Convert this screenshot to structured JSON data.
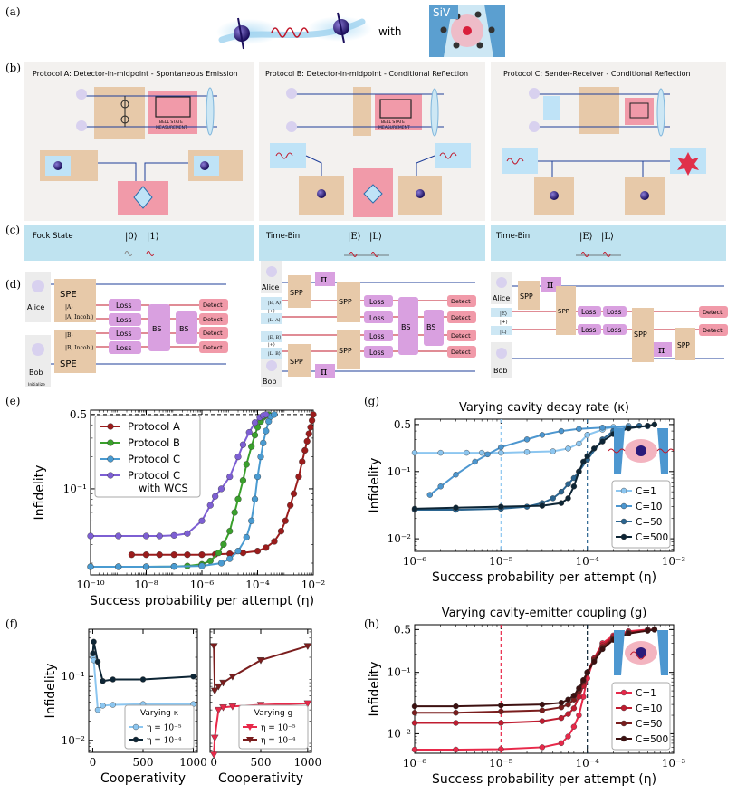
{
  "panel_labels": {
    "a": "(a)",
    "b": "(b)",
    "c": "(c)",
    "d": "(d)",
    "e": "(e)",
    "f": "(f)",
    "g": "(g)",
    "h": "(h)"
  },
  "panel_a": {
    "with_label": "with",
    "siv_label": "SiV"
  },
  "protocols": {
    "a_title": "Protocol A: Detector-in-midpoint - Spontaneous Emission",
    "b_title": "Protocol B: Detector-in-midpoint - Conditional Reflection",
    "c_title": "Protocol C: Sender-Receiver - Conditional Reflection",
    "bsm_line1": "BELL STATE",
    "bsm_line2": "MEASUREMENT"
  },
  "encodings": {
    "a": {
      "name": "Fock State",
      "s1": "|0⟩",
      "s2": "|1⟩"
    },
    "b": {
      "name": "Time-Bin",
      "s1": "|E⟩",
      "s2": "|L⟩"
    },
    "c": {
      "name": "Time-Bin",
      "s1": "|E⟩",
      "s2": "|L⟩"
    }
  },
  "circuits": {
    "alice": "Alice",
    "bob": "Bob",
    "initialize": "Initialize",
    "spe": "SPE",
    "spp": "SPP",
    "loss": "Loss",
    "bs": "BS",
    "detect": "Detect",
    "pi": "π",
    "a_states": [
      "|A⟩",
      "|A, Incoh.⟩",
      "|B⟩",
      "|B, Incoh.⟩"
    ],
    "b_states": [
      "|E, A⟩",
      "|+⟩",
      "|L, A⟩",
      "|E, B⟩",
      "|+⟩",
      "|L, B⟩"
    ],
    "c_states": [
      "|E⟩",
      "|+⟩",
      "|L⟩"
    ]
  },
  "colors": {
    "protoA": "#9b1c1c",
    "protoB": "#3aa02c",
    "protoC": "#4a9bd1",
    "wcs": "#7d5fd3",
    "c1": "#8cc6f0",
    "c10": "#4d97d0",
    "c50": "#2b6590",
    "c500": "#0d2535",
    "h1": "#e8294a",
    "h10": "#c01c30",
    "h50": "#7a1d1d",
    "h500": "#3d1010"
  },
  "chart_data": [
    {
      "id": "e",
      "type": "line",
      "xscale": "log",
      "yscale": "log",
      "xlabel": "Success probability per attempt (η)",
      "ylabel": "Infidelity",
      "xlim": [
        1e-10,
        0.01
      ],
      "ylim": [
        0.0155,
        0.55
      ],
      "xticks": [
        "10⁻¹⁰",
        "10⁻⁸",
        "10⁻⁶",
        "10⁻⁴",
        "10⁻²"
      ],
      "yticks": [
        "10⁻¹",
        "0.5"
      ],
      "reference_line": 0.5,
      "legend_position": "top-left",
      "series": [
        {
          "name": "Protocol A",
          "color": "protoA",
          "x": [
            3e-09,
            1e-08,
            3e-08,
            1e-07,
            3e-07,
            1e-06,
            3e-06,
            1e-05,
            3e-05,
            0.0001,
            0.0002,
            0.0004,
            0.0007,
            0.001,
            0.0015,
            0.002,
            0.003,
            0.004,
            0.005,
            0.006,
            0.007,
            0.008,
            0.009,
            0.01
          ],
          "y": [
            0.024,
            0.024,
            0.024,
            0.024,
            0.024,
            0.024,
            0.0242,
            0.0245,
            0.025,
            0.026,
            0.028,
            0.032,
            0.04,
            0.05,
            0.07,
            0.09,
            0.13,
            0.18,
            0.23,
            0.28,
            0.33,
            0.38,
            0.44,
            0.5
          ]
        },
        {
          "name": "Protocol B",
          "color": "protoB",
          "x": [
            1e-10,
            1e-09,
            1e-08,
            1e-07,
            3e-07,
            1e-06,
            2e-06,
            4e-06,
            6e-06,
            1e-05,
            1.5e-05,
            2e-05,
            3e-05,
            4e-05,
            6e-05,
            8e-05,
            0.0001,
            0.00013,
            0.00016,
            0.0002,
            0.00025
          ],
          "y": [
            0.0185,
            0.0185,
            0.0185,
            0.0186,
            0.0188,
            0.0195,
            0.021,
            0.025,
            0.03,
            0.04,
            0.06,
            0.08,
            0.12,
            0.17,
            0.25,
            0.32,
            0.38,
            0.43,
            0.47,
            0.49,
            0.5
          ]
        },
        {
          "name": "Protocol C",
          "color": "protoC",
          "x": [
            1e-10,
            1e-09,
            1e-08,
            1e-07,
            1e-06,
            5e-06,
            1e-05,
            2e-05,
            4e-05,
            6e-05,
            8e-05,
            0.0001,
            0.00013,
            0.00016,
            0.0002,
            0.00025,
            0.0003,
            0.0004
          ],
          "y": [
            0.0185,
            0.0185,
            0.0185,
            0.0186,
            0.0188,
            0.02,
            0.022,
            0.026,
            0.035,
            0.05,
            0.08,
            0.13,
            0.2,
            0.27,
            0.35,
            0.43,
            0.48,
            0.5
          ]
        },
        {
          "name": "Protocol C with WCS",
          "color": "wcs",
          "x": [
            1e-10,
            1e-09,
            1e-08,
            3e-08,
            1e-07,
            3e-07,
            1e-06,
            2e-06,
            3e-06,
            5e-06,
            1e-05,
            2e-05,
            3e-05,
            5e-05,
            8e-05,
            0.00012,
            0.00016,
            0.0002
          ],
          "y": [
            0.036,
            0.036,
            0.036,
            0.036,
            0.0365,
            0.038,
            0.05,
            0.07,
            0.085,
            0.1,
            0.13,
            0.2,
            0.26,
            0.34,
            0.42,
            0.47,
            0.49,
            0.5
          ]
        }
      ]
    },
    {
      "id": "g",
      "type": "line",
      "xscale": "log",
      "yscale": "log",
      "title": "Varying cavity decay rate (κ)",
      "xlabel": "Success probability per attempt (η)",
      "ylabel": "Infidelity",
      "xlim": [
        1e-06,
        0.001
      ],
      "ylim": [
        0.0065,
        0.6
      ],
      "xticks": [
        "10⁻⁶",
        "10⁻⁵",
        "10⁻⁴",
        "10⁻³"
      ],
      "yticks": [
        "10⁻²",
        "10⁻¹",
        "0.5"
      ],
      "vlines": [
        {
          "x": 1e-05,
          "color": "c1"
        },
        {
          "x": 0.0001,
          "color": "c50"
        }
      ],
      "legend_position": "bottom-right",
      "series": [
        {
          "name": "C=1",
          "color": "c1",
          "x": [
            1e-06,
            2e-06,
            4e-06,
            6e-06,
            1e-05,
            2e-05,
            4e-05,
            6e-05,
            8e-05,
            0.0001,
            0.00015,
            0.0002,
            0.0003
          ],
          "y": [
            0.19,
            0.19,
            0.19,
            0.19,
            0.19,
            0.195,
            0.2,
            0.22,
            0.26,
            0.35,
            0.42,
            0.46,
            0.48
          ]
        },
        {
          "name": "C=10",
          "color": "c10",
          "x": [
            1.5e-06,
            2e-06,
            3e-06,
            5e-06,
            7e-06,
            1e-05,
            2e-05,
            3e-05,
            5e-05,
            8e-05,
            0.00015,
            0.0003,
            0.0005
          ],
          "y": [
            0.045,
            0.06,
            0.09,
            0.14,
            0.18,
            0.23,
            0.3,
            0.35,
            0.4,
            0.43,
            0.45,
            0.46,
            0.47
          ]
        },
        {
          "name": "C=50",
          "color": "c50",
          "x": [
            1e-06,
            3e-06,
            1e-05,
            2e-05,
            3e-05,
            4e-05,
            5e-05,
            6e-05,
            7e-05,
            8e-05,
            0.0001,
            0.00015,
            0.0002,
            0.0004
          ],
          "y": [
            0.027,
            0.027,
            0.028,
            0.03,
            0.034,
            0.04,
            0.05,
            0.065,
            0.08,
            0.1,
            0.15,
            0.3,
            0.4,
            0.48
          ]
        },
        {
          "name": "C=500",
          "color": "c500",
          "x": [
            1e-06,
            3e-06,
            1e-05,
            3e-05,
            5e-05,
            6e-05,
            7e-05,
            8e-05,
            9e-05,
            0.0001,
            0.00012,
            0.00015,
            0.0002,
            0.0003,
            0.0005,
            0.0006
          ],
          "y": [
            0.028,
            0.029,
            0.03,
            0.031,
            0.034,
            0.04,
            0.06,
            0.1,
            0.14,
            0.17,
            0.22,
            0.28,
            0.36,
            0.44,
            0.48,
            0.5
          ]
        }
      ]
    },
    {
      "id": "f_left",
      "type": "line",
      "xscale": "linear",
      "yscale": "log",
      "xlabel": "Cooperativity",
      "ylabel": "Infidelity",
      "legend_title": "Varying κ",
      "xlim": [
        -40,
        1040
      ],
      "ylim": [
        0.0065,
        0.55
      ],
      "xticks": [
        "0",
        "500",
        "1000"
      ],
      "yticks": [
        "10⁻²",
        "10⁻¹"
      ],
      "series": [
        {
          "name": "η = 10⁻⁵",
          "color": "c1",
          "x": [
            1,
            10,
            50,
            100,
            200,
            500,
            1000
          ],
          "y": [
            0.2,
            0.18,
            0.03,
            0.035,
            0.036,
            0.037,
            0.037
          ]
        },
        {
          "name": "η = 10⁻⁴",
          "color": "c500",
          "x": [
            1,
            10,
            50,
            100,
            200,
            500,
            1000
          ],
          "y": [
            0.23,
            0.35,
            0.17,
            0.085,
            0.09,
            0.09,
            0.1
          ]
        }
      ]
    },
    {
      "id": "f_right",
      "type": "line",
      "xscale": "linear",
      "yscale": "log",
      "xlabel": "Cooperativity",
      "legend_title": "Varying g",
      "xlim": [
        -40,
        1040
      ],
      "ylim": [
        0.0065,
        0.55
      ],
      "xticks": [
        "0",
        "500",
        "1000"
      ],
      "series": [
        {
          "name": "η = 10⁻⁵",
          "color": "h1",
          "x": [
            1,
            10,
            50,
            100,
            200,
            500,
            1000
          ],
          "y": [
            0.006,
            0.011,
            0.03,
            0.033,
            0.034,
            0.036,
            0.038
          ]
        },
        {
          "name": "η = 10⁻⁴",
          "color": "h50",
          "x": [
            1,
            10,
            50,
            100,
            200,
            500,
            1000
          ],
          "y": [
            0.3,
            0.06,
            0.07,
            0.08,
            0.1,
            0.18,
            0.3
          ]
        }
      ]
    },
    {
      "id": "h",
      "type": "line",
      "xscale": "log",
      "yscale": "log",
      "title": "Varying cavity-emitter coupling (g)",
      "xlabel": "Success probability per attempt (η)",
      "ylabel": "Infidelity",
      "xlim": [
        1e-06,
        0.001
      ],
      "ylim": [
        0.0048,
        0.6
      ],
      "xticks": [
        "10⁻⁶",
        "10⁻⁵",
        "10⁻⁴",
        "10⁻³"
      ],
      "yticks": [
        "10⁻²",
        "10⁻¹",
        "0.5"
      ],
      "vlines": [
        {
          "x": 1e-05,
          "color": "h1"
        },
        {
          "x": 0.0001,
          "color": "c500"
        }
      ],
      "legend_position": "bottom-right",
      "series": [
        {
          "name": "C=1",
          "color": "h1",
          "x": [
            1e-06,
            3e-06,
            1e-05,
            3e-05,
            5e-05,
            6e-05,
            7e-05,
            8e-05,
            9e-05,
            0.0001,
            0.00012,
            0.00015,
            0.0002,
            0.0003,
            0.0005,
            0.0006
          ],
          "y": [
            0.0055,
            0.0055,
            0.0056,
            0.006,
            0.007,
            0.009,
            0.013,
            0.02,
            0.04,
            0.08,
            0.17,
            0.3,
            0.4,
            0.47,
            0.5,
            0.5
          ]
        },
        {
          "name": "C=10",
          "color": "h10",
          "x": [
            1e-06,
            3e-06,
            1e-05,
            3e-05,
            5e-05,
            6e-05,
            7e-05,
            8e-05,
            9e-05,
            0.0001,
            0.00012,
            0.00015,
            0.0002,
            0.0003,
            0.0005,
            0.0006
          ],
          "y": [
            0.015,
            0.015,
            0.015,
            0.016,
            0.018,
            0.021,
            0.026,
            0.04,
            0.06,
            0.1,
            0.17,
            0.28,
            0.38,
            0.45,
            0.49,
            0.5
          ]
        },
        {
          "name": "C=50",
          "color": "h50",
          "x": [
            1e-06,
            3e-06,
            1e-05,
            3e-05,
            5e-05,
            6e-05,
            7e-05,
            8e-05,
            9e-05,
            0.0001,
            0.00012,
            0.00015,
            0.0002,
            0.0003,
            0.0005,
            0.0006
          ],
          "y": [
            0.022,
            0.022,
            0.023,
            0.024,
            0.027,
            0.03,
            0.036,
            0.05,
            0.07,
            0.1,
            0.16,
            0.26,
            0.36,
            0.44,
            0.48,
            0.5
          ]
        },
        {
          "name": "C=500",
          "color": "h500",
          "x": [
            1e-06,
            3e-06,
            1e-05,
            3e-05,
            5e-05,
            6e-05,
            7e-05,
            8e-05,
            9e-05,
            0.0001,
            0.00012,
            0.00015,
            0.0002,
            0.0003,
            0.0005,
            0.0006
          ],
          "y": [
            0.028,
            0.028,
            0.029,
            0.03,
            0.032,
            0.036,
            0.042,
            0.055,
            0.075,
            0.1,
            0.15,
            0.24,
            0.34,
            0.43,
            0.48,
            0.5
          ]
        }
      ]
    }
  ]
}
